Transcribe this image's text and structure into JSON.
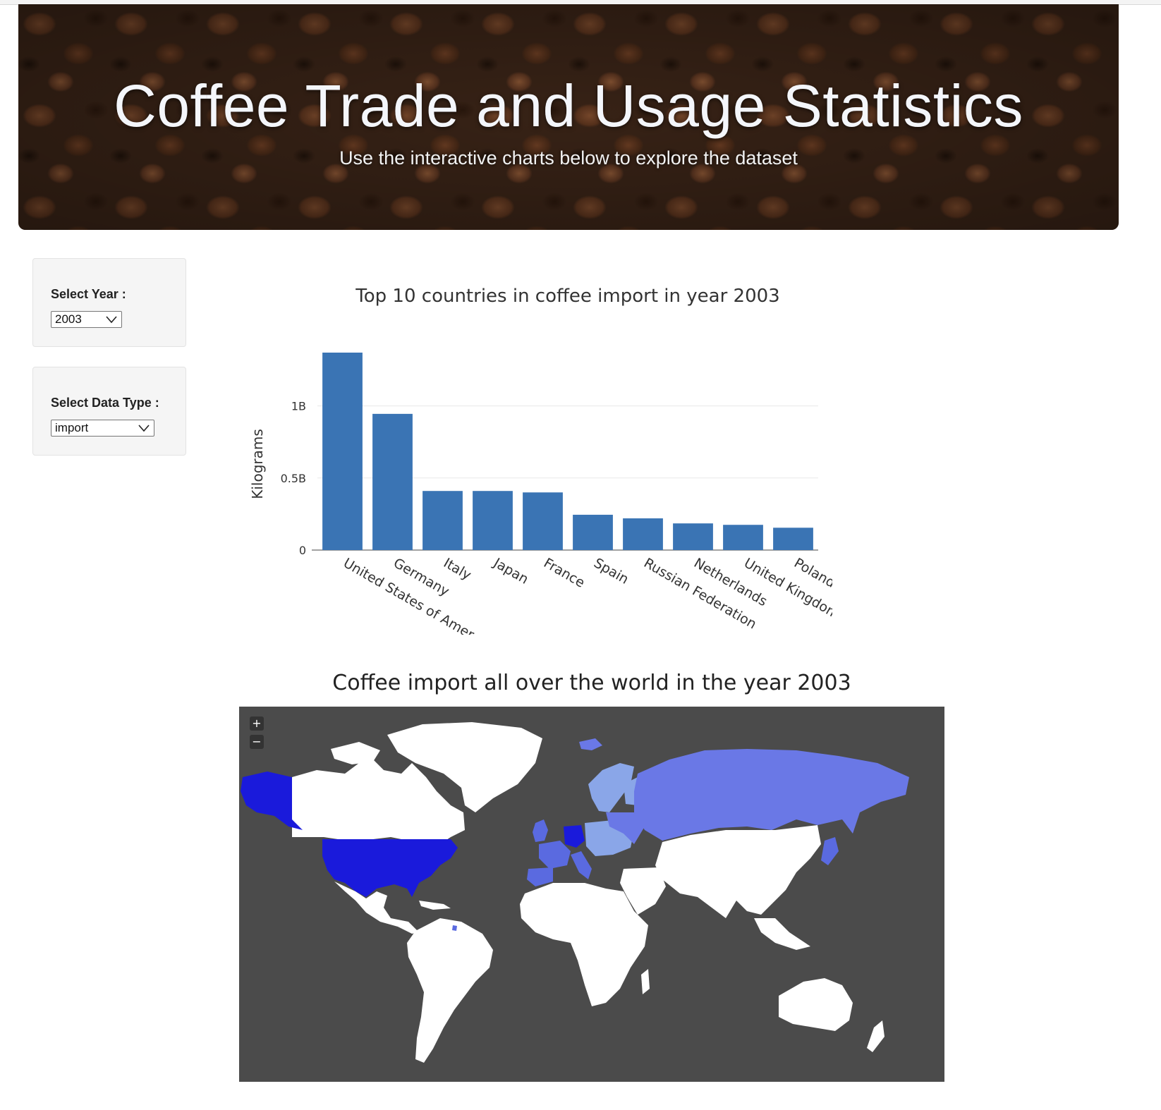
{
  "header": {
    "title": "Coffee Trade and Usage Statistics",
    "subtitle": "Use the interactive charts below to explore the dataset"
  },
  "controls": {
    "year_label": "Select Year :",
    "year_value": "2003",
    "type_label": "Select Data Type :",
    "type_value": "import"
  },
  "chart_data": {
    "type": "bar",
    "title": "Top 10 countries in coffee import in year 2003",
    "xlabel": "",
    "ylabel": "Kilograms",
    "categories": [
      "United States of Amer…",
      "Germany",
      "Italy",
      "Japan",
      "France",
      "Spain",
      "Russian Federation",
      "Netherlands",
      "United Kingdom",
      "Poland"
    ],
    "values": [
      1370000000,
      945000000,
      410000000,
      410000000,
      400000000,
      245000000,
      220000000,
      185000000,
      175000000,
      155000000
    ],
    "yticks": [
      0,
      500000000,
      1000000000
    ],
    "ytick_labels": [
      "0",
      "0.5B",
      "1B"
    ],
    "ylim": [
      0,
      1370000000
    ],
    "grid": true,
    "bar_color": "#3a74b4"
  },
  "map": {
    "title": "Coffee import all over the world in the year 2003",
    "zoom_in": "+",
    "zoom_out": "−",
    "background_color": "#4b4b4b",
    "highest_color": "#1a1adb",
    "high_color": "#5a6ae0",
    "mid_color": "#6a78e6",
    "low_color": "#8aa6e8",
    "no_data_color": "#ffffff"
  }
}
